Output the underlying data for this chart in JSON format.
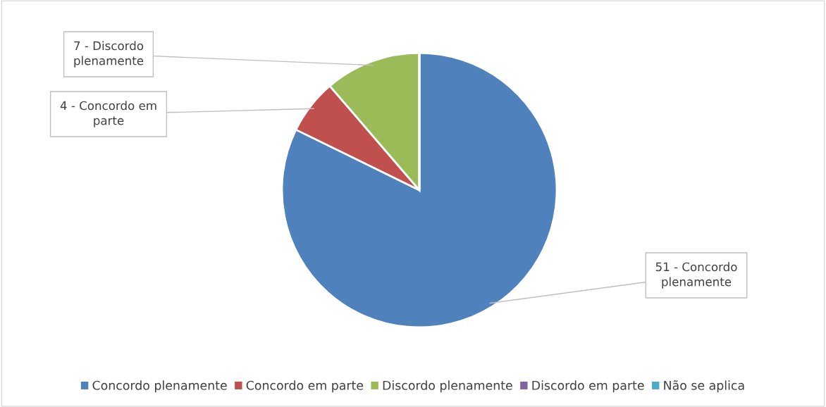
{
  "chart_data": {
    "type": "pie",
    "categories": [
      "Concordo plenamente",
      "Concordo em parte",
      "Discordo plenamente",
      "Discordo em parte",
      "Não se aplica"
    ],
    "values": [
      51,
      4,
      7,
      0,
      0
    ],
    "colors": [
      "#4f81bd",
      "#c0504d",
      "#9bbb59",
      "#8064a2",
      "#4bacc6"
    ],
    "value_labels": [
      "51 - Concordo\nplenamente",
      "4 - Concordo em\nparte",
      "7 - Discordo\nplenamente",
      null,
      null
    ],
    "legend": "bottom"
  }
}
